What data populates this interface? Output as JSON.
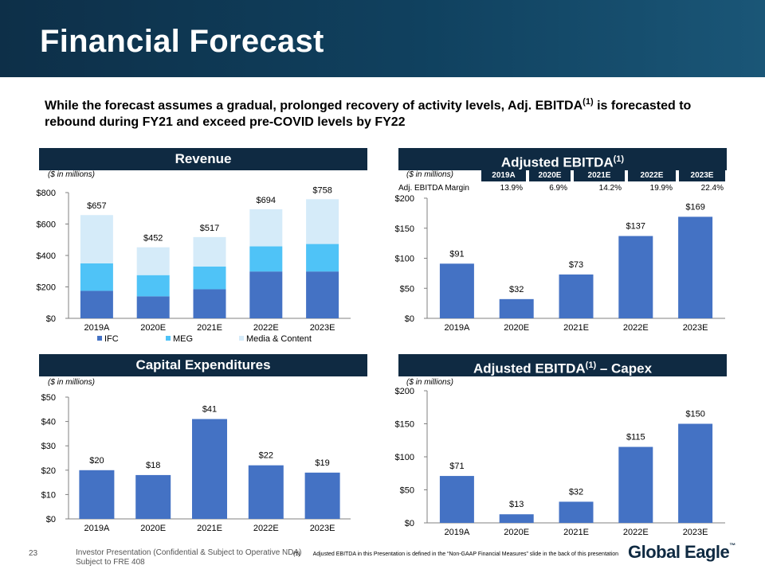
{
  "header": {
    "title": "Financial Forecast"
  },
  "intro": {
    "text_a": "While the forecast assumes a gradual, prolonged recovery of activity levels, Adj. EBITDA",
    "sup": "(1)",
    "text_b": " is forecasted to rebound during FY21 and exceed pre-COVID levels by FY22"
  },
  "sections": {
    "revenue": "Revenue",
    "ebitda": "Adjusted EBITDA",
    "ebitda_sup": "(1)",
    "capex": "Capital Expenditures",
    "ebitda_capex_a": "Adjusted EBITDA",
    "ebitda_capex_sup": "(1)",
    "ebitda_capex_b": " – Capex"
  },
  "units": "($ in millions)",
  "margin_table": {
    "label": "Adj. EBITDA Margin",
    "years": [
      "2019A",
      "2020E",
      "2021E",
      "2022E",
      "2023E"
    ],
    "values": [
      "13.9%",
      "6.9%",
      "14.2%",
      "19.9%",
      "22.4%"
    ]
  },
  "chart_data": [
    {
      "id": "revenue",
      "type": "bar",
      "stacked": true,
      "title": "Revenue",
      "categories": [
        "2019A",
        "2020E",
        "2021E",
        "2022E",
        "2023E"
      ],
      "series": [
        {
          "name": "IFC",
          "values": [
            175,
            140,
            185,
            298,
            298
          ],
          "color": "#4472c4"
        },
        {
          "name": "MEG",
          "values": [
            175,
            135,
            145,
            160,
            175
          ],
          "color": "#4fc3f7"
        },
        {
          "name": "Media & Content",
          "values": [
            307,
            177,
            187,
            236,
            285
          ],
          "color": "#d5ebf9"
        }
      ],
      "totals": [
        "$657",
        "$452",
        "$517",
        "$694",
        "$758"
      ],
      "yticks": [
        "$0",
        "$200",
        "$400",
        "$600",
        "$800"
      ],
      "ylim": [
        0,
        800
      ],
      "legend": "bottom"
    },
    {
      "id": "ebitda",
      "type": "bar",
      "title": "Adjusted EBITDA",
      "categories": [
        "2019A",
        "2020E",
        "2021E",
        "2022E",
        "2023E"
      ],
      "values": [
        91,
        32,
        73,
        137,
        169
      ],
      "labels": [
        "$91",
        "$32",
        "$73",
        "$137",
        "$169"
      ],
      "yticks": [
        "$0",
        "$50",
        "$100",
        "$150",
        "$200"
      ],
      "ylim": [
        0,
        200
      ],
      "color": "#4472c4"
    },
    {
      "id": "capex",
      "type": "bar",
      "title": "Capital Expenditures",
      "categories": [
        "2019A",
        "2020E",
        "2021E",
        "2022E",
        "2023E"
      ],
      "values": [
        20,
        18,
        41,
        22,
        19
      ],
      "labels": [
        "$20",
        "$18",
        "$41",
        "$22",
        "$19"
      ],
      "yticks": [
        "$0",
        "$10",
        "$20",
        "$30",
        "$40",
        "$50"
      ],
      "ylim": [
        0,
        50
      ],
      "color": "#4472c4"
    },
    {
      "id": "ebitda_capex",
      "type": "bar",
      "title": "Adjusted EBITDA – Capex",
      "categories": [
        "2019A",
        "2020E",
        "2021E",
        "2022E",
        "2023E"
      ],
      "values": [
        71,
        13,
        32,
        115,
        150
      ],
      "labels": [
        "$71",
        "$13",
        "$32",
        "$115",
        "$150"
      ],
      "yticks": [
        "$0",
        "$50",
        "$100",
        "$150",
        "$200"
      ],
      "ylim": [
        0,
        200
      ],
      "color": "#4472c4"
    }
  ],
  "footer": {
    "page": "23",
    "line1": "Investor Presentation (Confidential & Subject to Operative NDA)",
    "line2": "Subject to FRE 408",
    "note_num": "(1)",
    "note_text": "Adjusted EBITDA in this Presentation is defined in the “Non-GAAP Financial Measures” slide in the back of this presentation",
    "logo": "Global Eagle",
    "logo_tm": "™"
  }
}
